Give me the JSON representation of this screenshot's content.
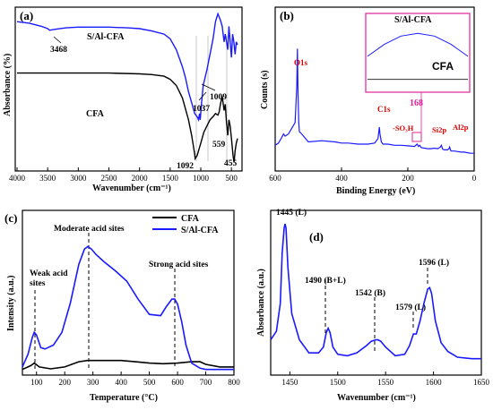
{
  "chart_data": [
    {
      "panel": "(a)",
      "type": "line",
      "xlabel": "Wavenumber (cm⁻¹)",
      "ylabel": "Absorbance (%)",
      "xlim": [
        4000,
        400
      ],
      "xticks": [
        "4000",
        "3500",
        "3000",
        "2500",
        "2000",
        "1500",
        "1000",
        "500"
      ],
      "series": [
        {
          "name": "S/Al-CFA",
          "color": "#1a1aff",
          "x": [
            4000,
            3800,
            3600,
            3500,
            3468,
            3400,
            3200,
            3000,
            2800,
            2500,
            2200,
            2000,
            1800,
            1600,
            1500,
            1400,
            1300,
            1250,
            1200,
            1150,
            1100,
            1060,
            1037,
            1020,
            1009,
            990,
            960,
            900,
            850,
            800,
            760,
            720,
            680,
            650,
            620,
            600,
            580,
            560,
            540,
            520,
            500,
            480,
            460,
            440,
            420,
            400
          ],
          "y": [
            0.93,
            0.92,
            0.9,
            0.885,
            0.875,
            0.88,
            0.89,
            0.895,
            0.895,
            0.895,
            0.89,
            0.885,
            0.87,
            0.85,
            0.82,
            0.75,
            0.64,
            0.57,
            0.48,
            0.41,
            0.34,
            0.32,
            0.3,
            0.34,
            0.3,
            0.4,
            0.52,
            0.62,
            0.72,
            0.82,
            0.93,
            0.98,
            0.94,
            0.9,
            0.8,
            0.85,
            0.8,
            0.75,
            0.9,
            0.8,
            0.7,
            0.85,
            0.8,
            0.72,
            0.8,
            0.78
          ]
        },
        {
          "name": "CFA",
          "color": "#000000",
          "x": [
            4000,
            3500,
            3000,
            2500,
            2000,
            1800,
            1600,
            1500,
            1400,
            1300,
            1200,
            1150,
            1100,
            1092,
            1060,
            1000,
            950,
            900,
            850,
            800,
            760,
            720,
            700,
            680,
            650,
            620,
            600,
            580,
            559,
            540,
            520,
            500,
            480,
            470,
            455,
            440,
            420,
            400
          ],
          "y": [
            0.6,
            0.6,
            0.6,
            0.6,
            0.595,
            0.59,
            0.58,
            0.56,
            0.52,
            0.44,
            0.3,
            0.2,
            0.08,
            0.05,
            0.07,
            0.15,
            0.22,
            0.26,
            0.3,
            0.32,
            0.34,
            0.33,
            0.35,
            0.4,
            0.45,
            0.36,
            0.4,
            0.28,
            0.2,
            0.3,
            0.26,
            0.18,
            0.1,
            0.06,
            0.03,
            0.1,
            0.15,
            0.18
          ]
        }
      ],
      "annotations": [
        "3468",
        "1037",
        "1009",
        "1092",
        "559",
        "455"
      ]
    },
    {
      "panel": "(b)",
      "type": "line",
      "xlabel": "Binding Energy (eV)",
      "ylabel": "Counts (s)",
      "xlim": [
        600,
        0
      ],
      "xticks": [
        "600",
        "400",
        "200",
        "0"
      ],
      "series": [
        {
          "name": "S/Al-CFA",
          "color": "#1a1aff",
          "x": [
            600,
            590,
            580,
            575,
            570,
            560,
            550,
            540,
            535,
            533,
            531,
            529,
            527,
            520,
            500,
            460,
            420,
            400,
            380,
            350,
            320,
            300,
            290,
            286,
            284,
            280,
            275,
            260,
            240,
            220,
            200,
            180,
            172,
            168,
            164,
            160,
            150,
            140,
            130,
            120,
            110,
            102,
            99,
            95,
            90,
            85,
            80,
            76,
            74,
            72,
            70,
            60,
            50,
            40,
            30,
            20,
            10,
            0
          ],
          "y": [
            0.1,
            0.12,
            0.17,
            0.2,
            0.18,
            0.2,
            0.25,
            0.3,
            0.62,
            0.95,
            0.55,
            0.3,
            0.22,
            0.2,
            0.13,
            0.14,
            0.13,
            0.12,
            0.12,
            0.11,
            0.11,
            0.12,
            0.16,
            0.26,
            0.2,
            0.13,
            0.11,
            0.11,
            0.1,
            0.1,
            0.095,
            0.09,
            0.11,
            0.09,
            0.1,
            0.08,
            0.075,
            0.07,
            0.07,
            0.075,
            0.07,
            0.085,
            0.1,
            0.065,
            0.06,
            0.06,
            0.06,
            0.07,
            0.085,
            0.065,
            0.05,
            0.05,
            0.045,
            0.04,
            0.04,
            0.035,
            0.03,
            0.03
          ]
        }
      ],
      "annotations": [
        "O1s",
        "C1s",
        "-SO₃H",
        "168",
        "Si2p",
        "Al2p"
      ],
      "inset": {
        "labels": [
          "S/Al-CFA",
          "CFA"
        ],
        "xlim": [
          180,
          156
        ],
        "series": [
          {
            "name": "S/Al-CFA",
            "x": [
              180,
              176,
              172,
              168,
              164,
              160,
              156
            ],
            "y": [
              0.45,
              0.62,
              0.74,
              0.78,
              0.74,
              0.62,
              0.45
            ]
          },
          {
            "name": "CFA",
            "x": [
              180,
              156
            ],
            "y": [
              0.12,
              0.12
            ]
          }
        ]
      }
    },
    {
      "panel": "(c)",
      "type": "line",
      "xlabel": "Temperature (°C)",
      "ylabel": "Intensity (a.u.)",
      "xlim": [
        50,
        800
      ],
      "xticks": [
        "100",
        "200",
        "300",
        "400",
        "500",
        "600",
        "700",
        "800"
      ],
      "legend": "top-right",
      "series": [
        {
          "name": "CFA",
          "color": "#000000",
          "x": [
            50,
            80,
            92,
            110,
            150,
            200,
            250,
            280,
            300,
            350,
            400,
            450,
            500,
            550,
            600,
            650,
            680,
            700,
            750,
            800
          ],
          "y": [
            0.03,
            0.06,
            0.08,
            0.05,
            0.035,
            0.05,
            0.09,
            0.1,
            0.1,
            0.1,
            0.1,
            0.09,
            0.08,
            0.075,
            0.08,
            0.09,
            0.09,
            0.07,
            0.05,
            0.05
          ]
        },
        {
          "name": "S/Al-CFA",
          "color": "#1a1aff",
          "x": [
            50,
            70,
            85,
            92,
            100,
            115,
            130,
            160,
            190,
            220,
            250,
            270,
            282,
            295,
            310,
            340,
            380,
            420,
            460,
            500,
            540,
            560,
            580,
            590,
            600,
            615,
            630,
            650,
            680,
            700,
            750,
            800
          ],
          "y": [
            0.05,
            0.15,
            0.28,
            0.32,
            0.3,
            0.2,
            0.19,
            0.22,
            0.32,
            0.55,
            0.85,
            0.97,
            0.99,
            0.97,
            0.93,
            0.87,
            0.8,
            0.72,
            0.58,
            0.46,
            0.45,
            0.52,
            0.58,
            0.58,
            0.54,
            0.4,
            0.22,
            0.08,
            0.04,
            0.03,
            0.03,
            0.03
          ]
        }
      ],
      "annotations": [
        "Weak acid\nsites",
        "Moderate acid sites",
        "Strong acid sites"
      ]
    },
    {
      "panel": "(d)",
      "type": "line",
      "xlabel": "Wavenumber (cm⁻¹)",
      "ylabel": "Absorbance (a.u.)",
      "xlim": [
        1430,
        1650
      ],
      "xticks": [
        "1450",
        "1500",
        "1550",
        "1600",
        "1650"
      ],
      "series": [
        {
          "name": "S/Al-CFA",
          "color": "#1a1aff",
          "x": [
            1430,
            1436,
            1440,
            1442,
            1444,
            1445,
            1446,
            1448,
            1452,
            1460,
            1470,
            1480,
            1485,
            1488,
            1490,
            1492,
            1495,
            1500,
            1510,
            1520,
            1530,
            1535,
            1540,
            1542,
            1545,
            1550,
            1560,
            1570,
            1575,
            1579,
            1582,
            1586,
            1590,
            1594,
            1596,
            1598,
            1602,
            1608,
            1615,
            1625,
            1640,
            1650
          ],
          "y": [
            0.2,
            0.26,
            0.45,
            0.8,
            0.97,
            1.0,
            0.97,
            0.7,
            0.38,
            0.2,
            0.11,
            0.11,
            0.15,
            0.25,
            0.28,
            0.25,
            0.15,
            0.1,
            0.09,
            0.11,
            0.16,
            0.19,
            0.2,
            0.2,
            0.19,
            0.15,
            0.09,
            0.1,
            0.16,
            0.24,
            0.24,
            0.33,
            0.45,
            0.55,
            0.56,
            0.52,
            0.33,
            0.18,
            0.12,
            0.08,
            0.07,
            0.07
          ]
        }
      ],
      "annotations": [
        "1445 (L)",
        "1490 (B+L)",
        "1542 (B)",
        "1579 (L)",
        "1596 (L)"
      ]
    }
  ]
}
